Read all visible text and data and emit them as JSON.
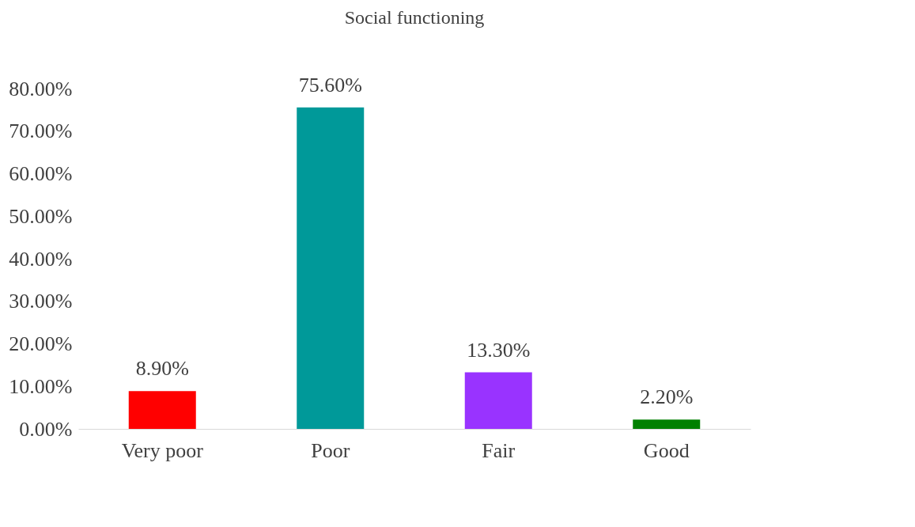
{
  "chart_data": {
    "type": "bar",
    "title": "Social functioning",
    "categories": [
      "Very poor",
      "Poor",
      "Fair",
      "Good"
    ],
    "values": [
      8.9,
      75.6,
      13.3,
      2.2
    ],
    "colors": [
      "#ff0000",
      "#009999",
      "#9933ff",
      "#008000"
    ],
    "value_labels": [
      "8.90%",
      "75.60%",
      "13.30%",
      "2.20%"
    ],
    "ylim": [
      0,
      80
    ],
    "yticks": [
      {
        "value": 0,
        "label": "0.00%"
      },
      {
        "value": 10,
        "label": "10.00%"
      },
      {
        "value": 20,
        "label": "20.00%"
      },
      {
        "value": 30,
        "label": "30.00%"
      },
      {
        "value": 40,
        "label": "40.00%"
      },
      {
        "value": 50,
        "label": "50.00%"
      },
      {
        "value": 60,
        "label": "60.00%"
      },
      {
        "value": 70,
        "label": "70.00%"
      },
      {
        "value": 80,
        "label": "80.00%"
      }
    ]
  }
}
